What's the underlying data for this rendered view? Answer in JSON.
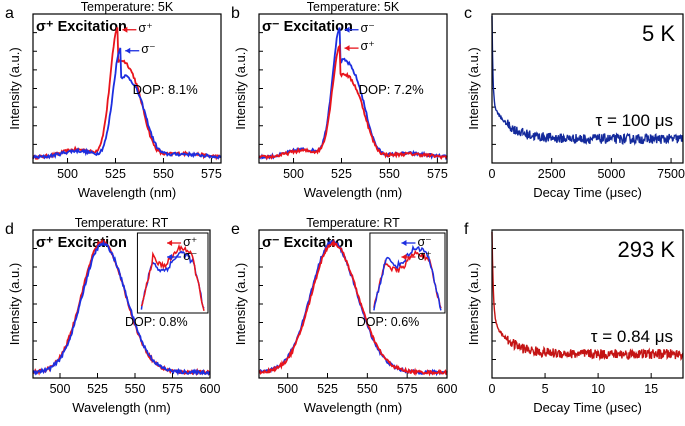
{
  "figure": {
    "colors": {
      "red": "#e8141c",
      "blue": "#1c2ee0",
      "navy": "#142a9c",
      "darkred": "#c41414"
    },
    "panels": [
      {
        "id": "a",
        "letter": "a",
        "type": "line",
        "title": "Temperature: 5K",
        "label": "σ⁺ Excitation",
        "xlabel": "Wavelength (nm)",
        "ylabel": "Intensity (a.u.)",
        "xlim": [
          482,
          580
        ],
        "xticks": [
          500,
          525,
          550,
          575
        ],
        "dop": "DOP: 8.1%",
        "profile": "pl5k",
        "series": [
          {
            "name": "σ⁺",
            "color": "red",
            "peak": 1.0,
            "center": 526.5,
            "legend": "σ⁺"
          },
          {
            "name": "σ⁻",
            "color": "blue",
            "peak": 0.84,
            "center": 528,
            "legend": "σ⁻"
          }
        ]
      },
      {
        "id": "b",
        "letter": "b",
        "type": "line",
        "title": "Temperature: 5K",
        "label": "σ⁻ Excitation",
        "xlabel": "Wavelength (nm)",
        "ylabel": "Intensity (a.u.)",
        "xlim": [
          482,
          580
        ],
        "xticks": [
          500,
          525,
          550,
          575
        ],
        "dop": "DOP: 7.2%",
        "profile": "pl5k",
        "series": [
          {
            "name": "σ⁻",
            "color": "blue",
            "peak": 1.0,
            "center": 524.5,
            "legend": "σ⁻"
          },
          {
            "name": "σ⁺",
            "color": "red",
            "peak": 0.86,
            "center": 524.5,
            "legend": "σ⁺"
          }
        ]
      },
      {
        "id": "c",
        "letter": "c",
        "type": "decay",
        "temperature": "5 K",
        "tau": "τ = 100 μs",
        "xlabel": "Decay Time (μsec)",
        "ylabel": "Intensity (a.u.)",
        "xlim": [
          0,
          8000
        ],
        "xticks": [
          0,
          2500,
          5000,
          7500
        ],
        "color": "navy",
        "tau_value": 100
      },
      {
        "id": "d",
        "letter": "d",
        "type": "line",
        "title": "Temperature: RT",
        "label": "σ⁺ Excitation",
        "xlabel": "Wavelength (nm)",
        "ylabel": "Intensity (a.u.)",
        "xlim": [
          482,
          600
        ],
        "xticks": [
          500,
          525,
          550,
          575,
          600
        ],
        "dop": "DOP: 0.8%",
        "profile": "gauss",
        "series": [
          {
            "name": "σ⁺",
            "color": "red",
            "peak": 1.0,
            "center": 528,
            "legend": "σ⁺"
          },
          {
            "name": "σ⁻",
            "color": "blue",
            "peak": 0.985,
            "center": 528.5,
            "legend": "σ⁻"
          }
        ],
        "inset": {
          "top": "red",
          "bottom": "blue"
        }
      },
      {
        "id": "e",
        "letter": "e",
        "type": "line",
        "title": "Temperature: RT",
        "label": "σ⁻ Excitation",
        "xlabel": "Wavelength (nm)",
        "ylabel": "Intensity (a.u.)",
        "xlim": [
          482,
          600
        ],
        "xticks": [
          500,
          525,
          550,
          575,
          600
        ],
        "dop": "DOP: 0.6%",
        "profile": "gauss",
        "series": [
          {
            "name": "σ⁻",
            "color": "blue",
            "peak": 1.0,
            "center": 528,
            "legend": "σ⁻"
          },
          {
            "name": "σ⁺",
            "color": "red",
            "peak": 0.99,
            "center": 528.5,
            "legend": "σ⁺"
          }
        ],
        "inset": {
          "top": "blue",
          "bottom": "red"
        }
      },
      {
        "id": "f",
        "letter": "f",
        "type": "decay",
        "temperature": "293 K",
        "tau": "τ = 0.84 μs",
        "xlabel": "Decay Time (μsec)",
        "ylabel": "Intensity (a.u.)",
        "xlim": [
          0,
          18
        ],
        "xticks": [
          0,
          5,
          10,
          15
        ],
        "color": "darkred",
        "tau_value": 0.84
      }
    ]
  },
  "chart_data": [
    {
      "type": "line",
      "panel": "a",
      "title": "Temperature: 5K",
      "annotation": "σ⁺ Excitation, DOP: 8.1%",
      "xlabel": "Wavelength (nm)",
      "ylabel": "Intensity (a.u.)",
      "xlim": [
        482,
        580
      ],
      "series": [
        {
          "name": "σ⁺",
          "x": [
            490,
            510,
            520,
            526.5,
            535,
            545,
            560,
            580
          ],
          "values": [
            0.02,
            0.12,
            0.6,
            1.0,
            0.55,
            0.2,
            0.06,
            0.02
          ]
        },
        {
          "name": "σ⁻",
          "x": [
            490,
            510,
            520,
            528,
            535,
            545,
            560,
            580
          ],
          "values": [
            0.02,
            0.1,
            0.5,
            0.84,
            0.62,
            0.24,
            0.07,
            0.02
          ]
        }
      ]
    },
    {
      "type": "line",
      "panel": "b",
      "title": "Temperature: 5K",
      "annotation": "σ⁻ Excitation, DOP: 7.2%",
      "xlabel": "Wavelength (nm)",
      "ylabel": "Intensity (a.u.)",
      "xlim": [
        482,
        580
      ],
      "series": [
        {
          "name": "σ⁻",
          "x": [
            490,
            515,
            520,
            524.5,
            530,
            536,
            545,
            580
          ],
          "values": [
            0.02,
            0.05,
            0.45,
            1.0,
            0.4,
            0.3,
            0.05,
            0.02
          ]
        },
        {
          "name": "σ⁺",
          "x": [
            490,
            515,
            520,
            524.5,
            530,
            536,
            545,
            580
          ],
          "values": [
            0.02,
            0.05,
            0.4,
            0.86,
            0.38,
            0.24,
            0.05,
            0.02
          ]
        }
      ]
    },
    {
      "type": "line",
      "panel": "c",
      "title": "5 K",
      "annotation": "τ = 100 μs",
      "xlabel": "Decay Time (μsec)",
      "ylabel": "Intensity (a.u.)",
      "xlim": [
        0,
        8000
      ],
      "series": [
        {
          "name": "decay",
          "x": [
            0,
            100,
            500,
            1000,
            2500,
            5000,
            7500
          ],
          "values": [
            1.0,
            0.55,
            0.35,
            0.27,
            0.2,
            0.17,
            0.15
          ]
        }
      ]
    },
    {
      "type": "line",
      "panel": "d",
      "title": "Temperature: RT",
      "annotation": "σ⁺ Excitation, DOP: 0.8%",
      "xlabel": "Wavelength (nm)",
      "ylabel": "Intensity (a.u.)",
      "xlim": [
        482,
        600
      ],
      "series": [
        {
          "name": "σ⁺",
          "x": [
            490,
            510,
            528,
            545,
            560,
            590
          ],
          "values": [
            0.03,
            0.3,
            1.0,
            0.45,
            0.08,
            0.02
          ]
        },
        {
          "name": "σ⁻",
          "x": [
            490,
            510,
            528.5,
            545,
            560,
            590
          ],
          "values": [
            0.03,
            0.29,
            0.985,
            0.45,
            0.08,
            0.02
          ]
        }
      ]
    },
    {
      "type": "line",
      "panel": "e",
      "title": "Temperature: RT",
      "annotation": "σ⁻ Excitation, DOP: 0.6%",
      "xlabel": "Wavelength (nm)",
      "ylabel": "Intensity (a.u.)",
      "xlim": [
        482,
        600
      ],
      "series": [
        {
          "name": "σ⁻",
          "x": [
            490,
            510,
            528,
            545,
            560,
            590
          ],
          "values": [
            0.03,
            0.3,
            1.0,
            0.45,
            0.08,
            0.02
          ]
        },
        {
          "name": "σ⁺",
          "x": [
            490,
            510,
            528.5,
            545,
            560,
            590
          ],
          "values": [
            0.03,
            0.3,
            0.99,
            0.45,
            0.08,
            0.02
          ]
        }
      ]
    },
    {
      "type": "line",
      "panel": "f",
      "title": "293 K",
      "annotation": "τ = 0.84 μs",
      "xlabel": "Decay Time (μsec)",
      "ylabel": "Intensity (a.u.)",
      "xlim": [
        0,
        18
      ],
      "series": [
        {
          "name": "decay",
          "x": [
            0,
            0.5,
            1,
            2,
            5,
            10,
            17
          ],
          "values": [
            1.0,
            0.55,
            0.42,
            0.34,
            0.25,
            0.2,
            0.17
          ]
        }
      ]
    }
  ]
}
